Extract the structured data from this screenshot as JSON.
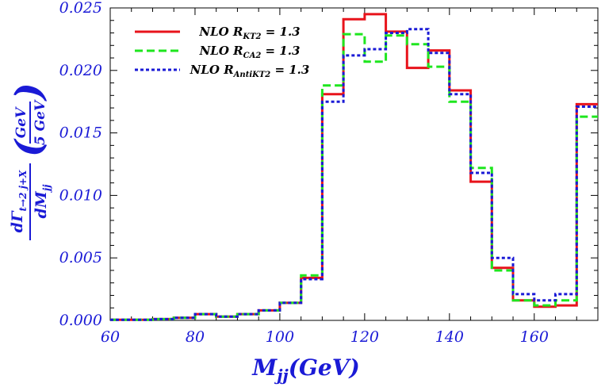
{
  "chart_data": {
    "type": "step",
    "x_bin_edges": [
      60,
      65,
      70,
      75,
      80,
      85,
      90,
      95,
      100,
      105,
      110,
      115,
      120,
      125,
      130,
      135,
      140,
      145,
      150,
      155,
      160,
      165,
      170,
      175
    ],
    "xlim": [
      60,
      175
    ],
    "ylim": [
      0,
      0.025
    ],
    "xticks": [
      "60",
      "80",
      "100",
      "120",
      "140",
      "160"
    ],
    "xtick_values": [
      60,
      80,
      100,
      120,
      140,
      160
    ],
    "yticks": [
      "0.000",
      "0.005",
      "0.010",
      "0.015",
      "0.020",
      "0.025"
    ],
    "ytick_values": [
      0.0,
      0.005,
      0.01,
      0.015,
      0.02,
      0.025
    ],
    "xlabel": "M_jj(GeV)",
    "xlabel_main": "M",
    "xlabel_sub": "jj",
    "xlabel_rest": "(GeV)",
    "ylabel": "dΓ_{t→2j+X}/dM_jj (GeV/5 GeV)",
    "ylabel_parts": {
      "num_main": "dΓ",
      "num_sub": "t→2 j+X",
      "den_main": "dM",
      "den_sub": "jj",
      "paren_num": "GeV",
      "paren_den": "5 GeV"
    },
    "series": [
      {
        "name": "NLO R_KT2 = 1.3",
        "label_main": "NLO R",
        "label_sub": "KT2",
        "label_rest": " = 1.3",
        "color": "#e8131b",
        "dash": "solid",
        "values": [
          5e-05,
          5e-05,
          0.0001,
          0.0002,
          0.0005,
          0.0003,
          0.0005,
          0.0008,
          0.0014,
          0.0034,
          0.0181,
          0.0241,
          0.0245,
          0.0231,
          0.0202,
          0.0216,
          0.0184,
          0.0111,
          0.0042,
          0.0016,
          0.0011,
          0.0012,
          0.0173
        ]
      },
      {
        "name": "NLO R_CA2 = 1.3",
        "label_main": "NLO R",
        "label_sub": "CA2",
        "label_rest": " = 1.3",
        "color": "#1ee61e",
        "dash": "dashed",
        "values": [
          5e-05,
          5e-05,
          0.0001,
          0.0002,
          0.0005,
          0.0003,
          0.0005,
          0.0008,
          0.0014,
          0.0036,
          0.0188,
          0.0229,
          0.0207,
          0.0228,
          0.0221,
          0.0203,
          0.0175,
          0.0122,
          0.004,
          0.0016,
          0.0012,
          0.0016,
          0.0163
        ]
      },
      {
        "name": "NLO R_AntiKT2 = 1.3",
        "label_main": "NLO R",
        "label_sub": "AntiKT2",
        "label_rest": " = 1.3",
        "color": "#1a1ad6",
        "dash": "dotted",
        "values": [
          5e-05,
          5e-05,
          0.0001,
          0.0002,
          0.0005,
          0.0003,
          0.0005,
          0.0008,
          0.0014,
          0.0033,
          0.0175,
          0.0212,
          0.0217,
          0.023,
          0.0233,
          0.0214,
          0.0181,
          0.0118,
          0.005,
          0.0021,
          0.0016,
          0.0021,
          0.0171
        ]
      }
    ],
    "legend_position": "top-left",
    "grid": false
  }
}
